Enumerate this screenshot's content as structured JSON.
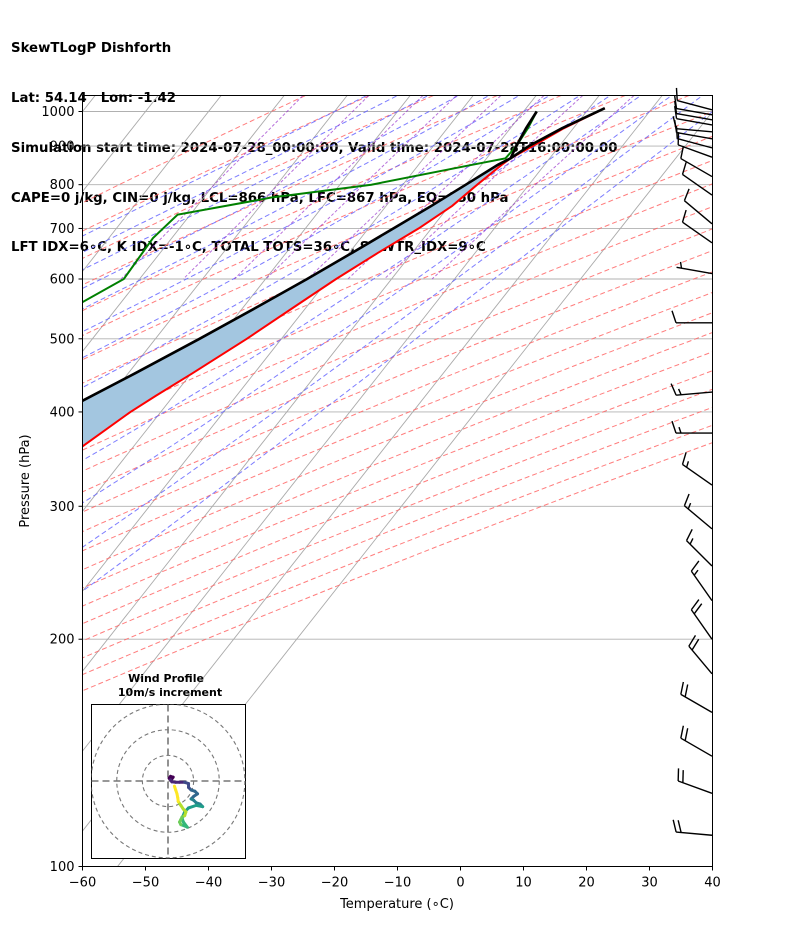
{
  "header": {
    "line1": "SkewTLogP Dishforth",
    "line2": "Lat: 54.14   Lon: -1.42",
    "line3": "Simulation start time: 2024-07-28_00:00:00, Valid time: 2024-07-28T16:00:00.00",
    "line4": "CAPE=0 j/kg, CIN=0 j/kg, LCL=866 hPa, LFC=867 hPa, EQ=850 hPa",
    "line5": "LFT IDX=6∘C, K IDX=-1∘C, TOTAL TOTS=36∘C, SHWTR_IDX=9∘C"
  },
  "chart_data": {
    "type": "skewt-logp",
    "xlabel": "Temperature (∘C)",
    "ylabel": "Pressure (hPa)",
    "xlim": [
      -60,
      40
    ],
    "ylim": [
      1050,
      100
    ],
    "x_ticks": [
      -60,
      -50,
      -40,
      -30,
      -20,
      -10,
      0,
      10,
      20,
      30,
      40
    ],
    "y_ticks": [
      1000,
      900,
      800,
      700,
      600,
      500,
      400,
      300,
      200,
      100
    ],
    "yscale": "log",
    "grid": true,
    "colors": {
      "temperature": "#ff0000",
      "dewpoint": "#008000",
      "parcel": "#000000",
      "cape_fill": "#a3c6e0",
      "isotherm": "#aaaaaa",
      "dry_adiabat": "#ff6666",
      "moist_adiabat": "#6666ff",
      "mixing_ratio": "#9933cc"
    },
    "temperature": {
      "name": "Temperature",
      "points": [
        {
          "p": 1010,
          "t": 22.5
        },
        {
          "p": 950,
          "t": 18.5
        },
        {
          "p": 900,
          "t": 15.8
        },
        {
          "p": 867,
          "t": 13.8
        },
        {
          "p": 850,
          "t": 13.2
        },
        {
          "p": 800,
          "t": 11.8
        },
        {
          "p": 750,
          "t": 10.5
        },
        {
          "p": 700,
          "t": 8.0
        },
        {
          "p": 650,
          "t": 4.6
        },
        {
          "p": 600,
          "t": 1.2
        },
        {
          "p": 550,
          "t": -2.0
        },
        {
          "p": 500,
          "t": -5.5
        },
        {
          "p": 450,
          "t": -9.8
        },
        {
          "p": 420,
          "t": -12.8
        },
        {
          "p": 400,
          "t": -14.8
        },
        {
          "p": 350,
          "t": -19.0
        },
        {
          "p": 300,
          "t": -27.0
        },
        {
          "p": 250,
          "t": -36.0
        },
        {
          "p": 220,
          "t": -41.5
        },
        {
          "p": 200,
          "t": -45.5
        },
        {
          "p": 185,
          "t": -47.8
        },
        {
          "p": 170,
          "t": -46.8
        },
        {
          "p": 150,
          "t": -47.5
        },
        {
          "p": 130,
          "t": -47.5
        },
        {
          "p": 115,
          "t": -48.0
        },
        {
          "p": 100,
          "t": -48.5
        }
      ]
    },
    "dewpoint": {
      "name": "Dewpoint",
      "points": [
        {
          "p": 1000,
          "t": 12.1
        },
        {
          "p": 950,
          "t": 12.8
        },
        {
          "p": 900,
          "t": 13.2
        },
        {
          "p": 867,
          "t": 13.0
        },
        {
          "p": 850,
          "t": 8.5
        },
        {
          "p": 800,
          "t": -5.0
        },
        {
          "p": 770,
          "t": -19.0
        },
        {
          "p": 730,
          "t": -32.0
        },
        {
          "p": 680,
          "t": -33.0
        },
        {
          "p": 600,
          "t": -32.5
        },
        {
          "p": 550,
          "t": -37.0
        },
        {
          "p": 500,
          "t": -41.0
        },
        {
          "p": 470,
          "t": -49.0
        },
        {
          "p": 440,
          "t": -55.0
        },
        {
          "p": 410,
          "t": -50.0
        },
        {
          "p": 380,
          "t": -43.0
        },
        {
          "p": 340,
          "t": -55.0
        },
        {
          "p": 300,
          "t": -63.0
        },
        {
          "p": 280,
          "t": -67.0
        },
        {
          "p": 260,
          "t": -68.0
        },
        {
          "p": 240,
          "t": -73.0
        },
        {
          "p": 220,
          "t": -78.0
        },
        {
          "p": 200,
          "t": -82.0
        },
        {
          "p": 175,
          "t": -84.0
        },
        {
          "p": 160,
          "t": -85.5
        },
        {
          "p": 148,
          "t": -87.0
        },
        {
          "p": 135,
          "t": -92.0
        },
        {
          "p": 120,
          "t": -88.0
        },
        {
          "p": 100,
          "t": -81.0
        }
      ]
    },
    "parcel": {
      "name": "Parcel",
      "points": [
        {
          "p": 1000,
          "t": 12.1
        },
        {
          "p": 950,
          "t": 12.5
        },
        {
          "p": 900,
          "t": 13.2
        },
        {
          "p": 867,
          "t": 13.8
        },
        {
          "p": 850,
          "t": 12.6
        },
        {
          "p": 800,
          "t": 10.0
        },
        {
          "p": 750,
          "t": 7.2
        },
        {
          "p": 700,
          "t": 4.0
        },
        {
          "p": 650,
          "t": 0.5
        },
        {
          "p": 600,
          "t": -3.4
        },
        {
          "p": 550,
          "t": -7.9
        },
        {
          "p": 500,
          "t": -13.0
        },
        {
          "p": 450,
          "t": -18.9
        },
        {
          "p": 400,
          "t": -25.8
        },
        {
          "p": 350,
          "t": -33.8
        },
        {
          "p": 300,
          "t": -43.0
        },
        {
          "p": 250,
          "t": -53.8
        },
        {
          "p": 200,
          "t": -66.5
        },
        {
          "p": 175,
          "t": -73.8
        },
        {
          "p": 150,
          "t": -81.9
        },
        {
          "p": 125,
          "t": -91.2
        },
        {
          "p": 100,
          "t": -102.5
        }
      ]
    },
    "parcel_lower": {
      "name": "Surface parcel",
      "points": [
        {
          "p": 1010,
          "t": 22.5
        },
        {
          "p": 950,
          "t": 18.2
        },
        {
          "p": 900,
          "t": 15.2
        },
        {
          "p": 867,
          "t": 13.8
        }
      ]
    },
    "wind_barbs": [
      {
        "p": 1005,
        "dir": 285,
        "spd": 12
      },
      {
        "p": 990,
        "dir": 280,
        "spd": 12
      },
      {
        "p": 975,
        "dir": 280,
        "spd": 12
      },
      {
        "p": 960,
        "dir": 280,
        "spd": 11
      },
      {
        "p": 940,
        "dir": 275,
        "spd": 11
      },
      {
        "p": 920,
        "dir": 280,
        "spd": 10
      },
      {
        "p": 895,
        "dir": 285,
        "spd": 10
      },
      {
        "p": 870,
        "dir": 290,
        "spd": 10
      },
      {
        "p": 820,
        "dir": 300,
        "spd": 10
      },
      {
        "p": 775,
        "dir": 305,
        "spd": 10
      },
      {
        "p": 710,
        "dir": 310,
        "spd": 11
      },
      {
        "p": 670,
        "dir": 305,
        "spd": 11
      },
      {
        "p": 610,
        "dir": 280,
        "spd": 7
      },
      {
        "p": 525,
        "dir": 270,
        "spd": 10
      },
      {
        "p": 425,
        "dir": 265,
        "spd": 15
      },
      {
        "p": 375,
        "dir": 270,
        "spd": 15
      },
      {
        "p": 320,
        "dir": 305,
        "spd": 15
      },
      {
        "p": 280,
        "dir": 310,
        "spd": 15
      },
      {
        "p": 250,
        "dir": 315,
        "spd": 15
      },
      {
        "p": 225,
        "dir": 325,
        "spd": 15
      },
      {
        "p": 200,
        "dir": 325,
        "spd": 20
      },
      {
        "p": 180,
        "dir": 320,
        "spd": 20
      },
      {
        "p": 160,
        "dir": 300,
        "spd": 20
      },
      {
        "p": 140,
        "dir": 300,
        "spd": 20
      },
      {
        "p": 125,
        "dir": 290,
        "spd": 20
      },
      {
        "p": 110,
        "dir": 275,
        "spd": 20
      }
    ],
    "hodograph": {
      "title": "Wind Profile",
      "subtitle": "10m/s increment",
      "rings_ms": [
        10,
        20,
        30
      ],
      "max_ms": 30,
      "points_uv": [
        [
          2.5,
          -2.0
        ],
        [
          3.0,
          -3.5
        ],
        [
          3.5,
          -5.0
        ],
        [
          3.8,
          -6.5
        ],
        [
          4.0,
          -8.0
        ],
        [
          5.0,
          -9.5
        ],
        [
          6.0,
          -11.0
        ],
        [
          7.0,
          -12.0
        ],
        [
          6.5,
          -13.5
        ],
        [
          5.5,
          -14.0
        ],
        [
          5.0,
          -15.0
        ],
        [
          4.5,
          -16.0
        ],
        [
          5.0,
          -17.0
        ],
        [
          6.5,
          -17.5
        ],
        [
          7.5,
          -18.0
        ],
        [
          6.0,
          -16.0
        ],
        [
          5.5,
          -14.5
        ],
        [
          6.5,
          -12.0
        ],
        [
          8.0,
          -10.5
        ],
        [
          11.0,
          -9.5
        ],
        [
          13.5,
          -10.0
        ],
        [
          12.5,
          -9.0
        ],
        [
          11.0,
          -8.5
        ],
        [
          10.0,
          -7.5
        ],
        [
          9.0,
          -7.0
        ],
        [
          10.0,
          -6.0
        ],
        [
          11.5,
          -5.0
        ],
        [
          10.5,
          -4.0
        ],
        [
          9.0,
          -3.5
        ],
        [
          8.0,
          -2.5
        ],
        [
          8.0,
          -1.0
        ],
        [
          6.5,
          -0.5
        ],
        [
          4.5,
          -0.5
        ],
        [
          3.0,
          -0.5
        ],
        [
          1.5,
          -0.3
        ],
        [
          1.0,
          0.5
        ],
        [
          0.5,
          1.0
        ],
        [
          1.5,
          0.8
        ],
        [
          2.0,
          1.5
        ],
        [
          1.0,
          1.8
        ],
        [
          0.5,
          1.2
        ]
      ]
    }
  }
}
